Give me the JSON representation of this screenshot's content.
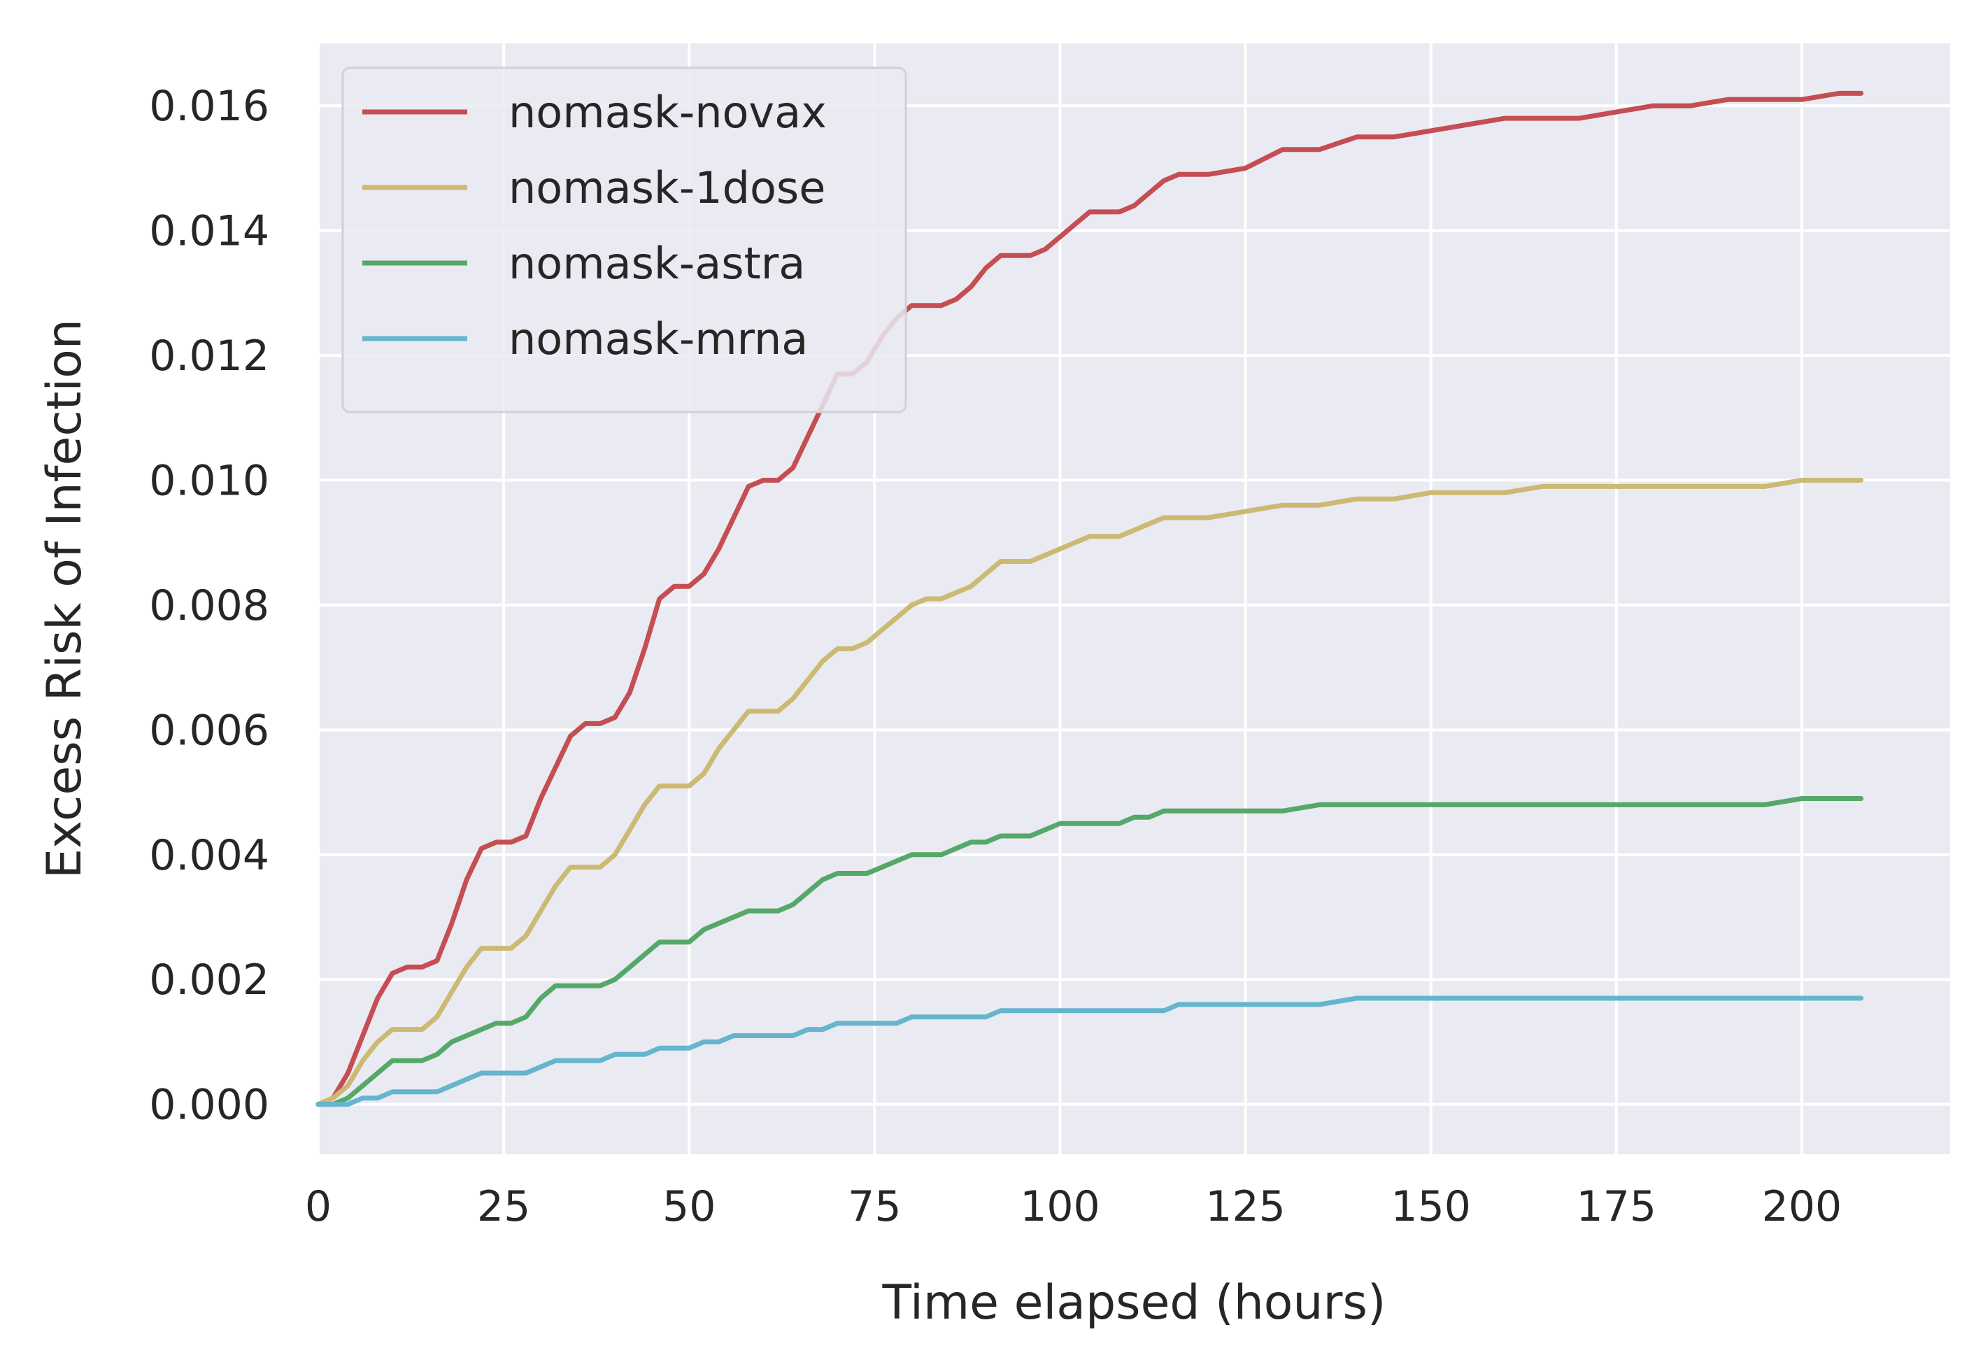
{
  "chart_data": {
    "type": "line",
    "title": "",
    "xlabel": "Time elapsed (hours)",
    "ylabel": "Excess Risk of Infection",
    "xlim": [
      0,
      220
    ],
    "ylim": [
      -0.0008,
      0.017
    ],
    "xticks": [
      0,
      25,
      50,
      75,
      100,
      125,
      150,
      175,
      200
    ],
    "xtick_labels": [
      "0",
      "25",
      "50",
      "75",
      "100",
      "125",
      "150",
      "175",
      "200"
    ],
    "yticks": [
      0.0,
      0.002,
      0.004,
      0.006,
      0.008,
      0.01,
      0.012,
      0.014,
      0.016
    ],
    "ytick_labels": [
      "0.000",
      "0.002",
      "0.004",
      "0.006",
      "0.008",
      "0.010",
      "0.012",
      "0.014",
      "0.016"
    ],
    "grid": true,
    "legend_position": "top-left",
    "background_color": "#eaeaf2",
    "grid_color": "#ffffff",
    "series": [
      {
        "name": "nomask-novax",
        "color": "#c44e52",
        "x": [
          0,
          2,
          4,
          6,
          8,
          10,
          12,
          14,
          16,
          18,
          20,
          22,
          24,
          26,
          28,
          30,
          32,
          34,
          36,
          38,
          40,
          42,
          44,
          46,
          48,
          50,
          52,
          54,
          56,
          58,
          60,
          62,
          64,
          66,
          68,
          70,
          72,
          74,
          76,
          78,
          80,
          82,
          84,
          86,
          88,
          90,
          92,
          94,
          96,
          98,
          100,
          102,
          104,
          106,
          108,
          110,
          112,
          114,
          116,
          118,
          120,
          125,
          130,
          135,
          140,
          145,
          150,
          155,
          160,
          165,
          170,
          175,
          180,
          185,
          190,
          195,
          200,
          205,
          208
        ],
        "y": [
          0.0,
          0.0001,
          0.0005,
          0.0011,
          0.0017,
          0.0021,
          0.0022,
          0.0022,
          0.0023,
          0.0029,
          0.0036,
          0.0041,
          0.0042,
          0.0042,
          0.0043,
          0.0049,
          0.0054,
          0.0059,
          0.0061,
          0.0061,
          0.0062,
          0.0066,
          0.0073,
          0.0081,
          0.0083,
          0.0083,
          0.0085,
          0.0089,
          0.0094,
          0.0099,
          0.01,
          0.01,
          0.0102,
          0.0107,
          0.0112,
          0.0117,
          0.0117,
          0.0119,
          0.0123,
          0.0126,
          0.0128,
          0.0128,
          0.0128,
          0.0129,
          0.0131,
          0.0134,
          0.0136,
          0.0136,
          0.0136,
          0.0137,
          0.0139,
          0.0141,
          0.0143,
          0.0143,
          0.0143,
          0.0144,
          0.0146,
          0.0148,
          0.0149,
          0.0149,
          0.0149,
          0.015,
          0.0153,
          0.0153,
          0.0155,
          0.0155,
          0.0156,
          0.0157,
          0.0158,
          0.0158,
          0.0158,
          0.0159,
          0.016,
          0.016,
          0.0161,
          0.0161,
          0.0161,
          0.0162,
          0.0162
        ]
      },
      {
        "name": "nomask-1dose",
        "color": "#ccb974",
        "x": [
          0,
          2,
          4,
          6,
          8,
          10,
          12,
          14,
          16,
          18,
          20,
          22,
          24,
          26,
          28,
          30,
          32,
          34,
          36,
          38,
          40,
          42,
          44,
          46,
          48,
          50,
          52,
          54,
          56,
          58,
          60,
          62,
          64,
          66,
          68,
          70,
          72,
          74,
          76,
          78,
          80,
          82,
          84,
          86,
          88,
          90,
          92,
          94,
          96,
          98,
          100,
          102,
          104,
          106,
          108,
          110,
          112,
          114,
          116,
          118,
          120,
          125,
          130,
          135,
          140,
          145,
          150,
          155,
          160,
          165,
          170,
          175,
          180,
          185,
          190,
          195,
          200,
          205,
          208
        ],
        "y": [
          0.0,
          0.0001,
          0.0003,
          0.0007,
          0.001,
          0.0012,
          0.0012,
          0.0012,
          0.0014,
          0.0018,
          0.0022,
          0.0025,
          0.0025,
          0.0025,
          0.0027,
          0.0031,
          0.0035,
          0.0038,
          0.0038,
          0.0038,
          0.004,
          0.0044,
          0.0048,
          0.0051,
          0.0051,
          0.0051,
          0.0053,
          0.0057,
          0.006,
          0.0063,
          0.0063,
          0.0063,
          0.0065,
          0.0068,
          0.0071,
          0.0073,
          0.0073,
          0.0074,
          0.0076,
          0.0078,
          0.008,
          0.0081,
          0.0081,
          0.0082,
          0.0083,
          0.0085,
          0.0087,
          0.0087,
          0.0087,
          0.0088,
          0.0089,
          0.009,
          0.0091,
          0.0091,
          0.0091,
          0.0092,
          0.0093,
          0.0094,
          0.0094,
          0.0094,
          0.0094,
          0.0095,
          0.0096,
          0.0096,
          0.0097,
          0.0097,
          0.0098,
          0.0098,
          0.0098,
          0.0099,
          0.0099,
          0.0099,
          0.0099,
          0.0099,
          0.0099,
          0.0099,
          0.01,
          0.01,
          0.01
        ]
      },
      {
        "name": "nomask-astra",
        "color": "#55a868",
        "x": [
          0,
          2,
          4,
          6,
          8,
          10,
          12,
          14,
          16,
          18,
          20,
          22,
          24,
          26,
          28,
          30,
          32,
          34,
          36,
          38,
          40,
          42,
          44,
          46,
          48,
          50,
          52,
          54,
          56,
          58,
          60,
          62,
          64,
          66,
          68,
          70,
          72,
          74,
          76,
          78,
          80,
          82,
          84,
          86,
          88,
          90,
          92,
          94,
          96,
          98,
          100,
          102,
          104,
          106,
          108,
          110,
          112,
          114,
          116,
          118,
          120,
          125,
          130,
          135,
          140,
          145,
          150,
          155,
          160,
          165,
          170,
          175,
          180,
          185,
          190,
          195,
          200,
          205,
          208
        ],
        "y": [
          0.0,
          0.0,
          0.0001,
          0.0003,
          0.0005,
          0.0007,
          0.0007,
          0.0007,
          0.0008,
          0.001,
          0.0011,
          0.0012,
          0.0013,
          0.0013,
          0.0014,
          0.0017,
          0.0019,
          0.0019,
          0.0019,
          0.0019,
          0.002,
          0.0022,
          0.0024,
          0.0026,
          0.0026,
          0.0026,
          0.0028,
          0.0029,
          0.003,
          0.0031,
          0.0031,
          0.0031,
          0.0032,
          0.0034,
          0.0036,
          0.0037,
          0.0037,
          0.0037,
          0.0038,
          0.0039,
          0.004,
          0.004,
          0.004,
          0.0041,
          0.0042,
          0.0042,
          0.0043,
          0.0043,
          0.0043,
          0.0044,
          0.0045,
          0.0045,
          0.0045,
          0.0045,
          0.0045,
          0.0046,
          0.0046,
          0.0047,
          0.0047,
          0.0047,
          0.0047,
          0.0047,
          0.0047,
          0.0048,
          0.0048,
          0.0048,
          0.0048,
          0.0048,
          0.0048,
          0.0048,
          0.0048,
          0.0048,
          0.0048,
          0.0048,
          0.0048,
          0.0048,
          0.0049,
          0.0049,
          0.0049
        ]
      },
      {
        "name": "nomask-mrna",
        "color": "#64b5cd",
        "x": [
          0,
          2,
          4,
          6,
          8,
          10,
          12,
          14,
          16,
          18,
          20,
          22,
          24,
          26,
          28,
          30,
          32,
          34,
          36,
          38,
          40,
          42,
          44,
          46,
          48,
          50,
          52,
          54,
          56,
          58,
          60,
          62,
          64,
          66,
          68,
          70,
          72,
          74,
          76,
          78,
          80,
          82,
          84,
          86,
          88,
          90,
          92,
          94,
          96,
          98,
          100,
          102,
          104,
          106,
          108,
          110,
          112,
          114,
          116,
          118,
          120,
          125,
          130,
          135,
          140,
          145,
          150,
          155,
          160,
          165,
          170,
          175,
          180,
          185,
          190,
          195,
          200,
          205,
          208
        ],
        "y": [
          0.0,
          0.0,
          0.0,
          0.0001,
          0.0001,
          0.0002,
          0.0002,
          0.0002,
          0.0002,
          0.0003,
          0.0004,
          0.0005,
          0.0005,
          0.0005,
          0.0005,
          0.0006,
          0.0007,
          0.0007,
          0.0007,
          0.0007,
          0.0008,
          0.0008,
          0.0008,
          0.0009,
          0.0009,
          0.0009,
          0.001,
          0.001,
          0.0011,
          0.0011,
          0.0011,
          0.0011,
          0.0011,
          0.0012,
          0.0012,
          0.0013,
          0.0013,
          0.0013,
          0.0013,
          0.0013,
          0.0014,
          0.0014,
          0.0014,
          0.0014,
          0.0014,
          0.0014,
          0.0015,
          0.0015,
          0.0015,
          0.0015,
          0.0015,
          0.0015,
          0.0015,
          0.0015,
          0.0015,
          0.0015,
          0.0015,
          0.0015,
          0.0016,
          0.0016,
          0.0016,
          0.0016,
          0.0016,
          0.0016,
          0.0017,
          0.0017,
          0.0017,
          0.0017,
          0.0017,
          0.0017,
          0.0017,
          0.0017,
          0.0017,
          0.0017,
          0.0017,
          0.0017,
          0.0017,
          0.0017,
          0.0017
        ]
      }
    ]
  }
}
